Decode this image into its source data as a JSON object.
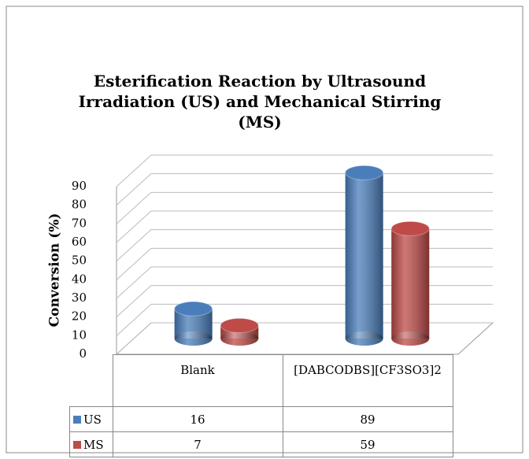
{
  "chart_data": {
    "type": "bar3d",
    "title": "Esterification Reaction by Ultrasound Irradiation (US) and Mechanical Stirring (MS)",
    "y_label": "Conversion (%)",
    "categories": [
      "Blank",
      "[DABCODBS][CF3SO3]2"
    ],
    "series": [
      {
        "name": "US",
        "color": "#4a7ebb",
        "values": [
          16,
          89
        ]
      },
      {
        "name": "MS",
        "color": "#be4b48",
        "values": [
          7,
          59
        ]
      }
    ],
    "ylim": [
      0,
      90
    ],
    "yticks": [
      0,
      10,
      20,
      30,
      40,
      50,
      60,
      70,
      80,
      90
    ],
    "grid": true
  }
}
